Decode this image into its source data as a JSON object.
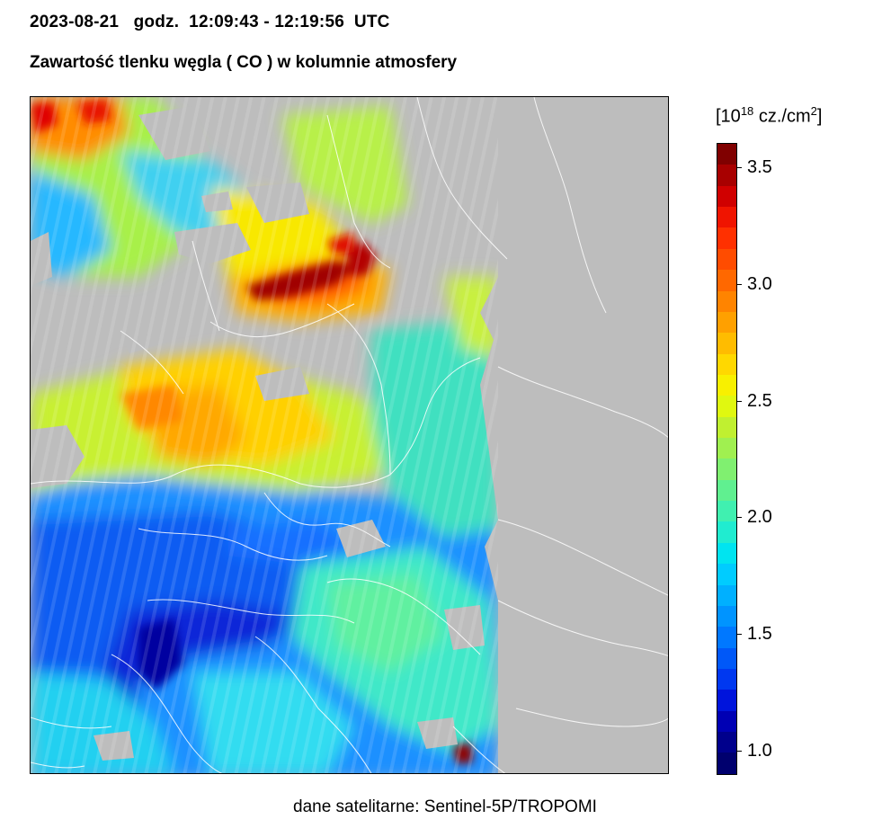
{
  "header": {
    "line1": "2023-08-21   godz.  12:09:43 - 12:19:56  UTC",
    "line2": "Zawartość tlenku węgla ( CO ) w kolumnie atmosfery"
  },
  "legend": {
    "unit_base": "[10",
    "unit_exp": "18",
    "unit_mid": " cz./cm",
    "unit_exp2": "2",
    "unit_end": "]",
    "min": 0.9,
    "max": 3.6,
    "ticks": [
      {
        "label": "1.0",
        "value": 1.0
      },
      {
        "label": "1.5",
        "value": 1.5
      },
      {
        "label": "2.0",
        "value": 2.0
      },
      {
        "label": "2.5",
        "value": 2.5
      },
      {
        "label": "3.0",
        "value": 3.0
      },
      {
        "label": "3.5",
        "value": 3.5
      }
    ],
    "colors": [
      "#00006e",
      "#00008c",
      "#0000b4",
      "#0014dc",
      "#0038f0",
      "#0058f8",
      "#0078ff",
      "#0094ff",
      "#00b0ff",
      "#00ccff",
      "#00e4f0",
      "#20ecd0",
      "#40f0b0",
      "#60f090",
      "#80f070",
      "#a0f050",
      "#c0f030",
      "#e0f810",
      "#f8f000",
      "#ffd800",
      "#ffbc00",
      "#ffa000",
      "#ff8400",
      "#ff6800",
      "#ff4c00",
      "#ff3000",
      "#f01400",
      "#d00000",
      "#a80000",
      "#800000"
    ]
  },
  "map": {
    "background": "#bdbdbd",
    "border_color": "#ffffff"
  },
  "footer": {
    "credit": "dane satelitarne: Sentinel-5P/TROPOMI"
  }
}
